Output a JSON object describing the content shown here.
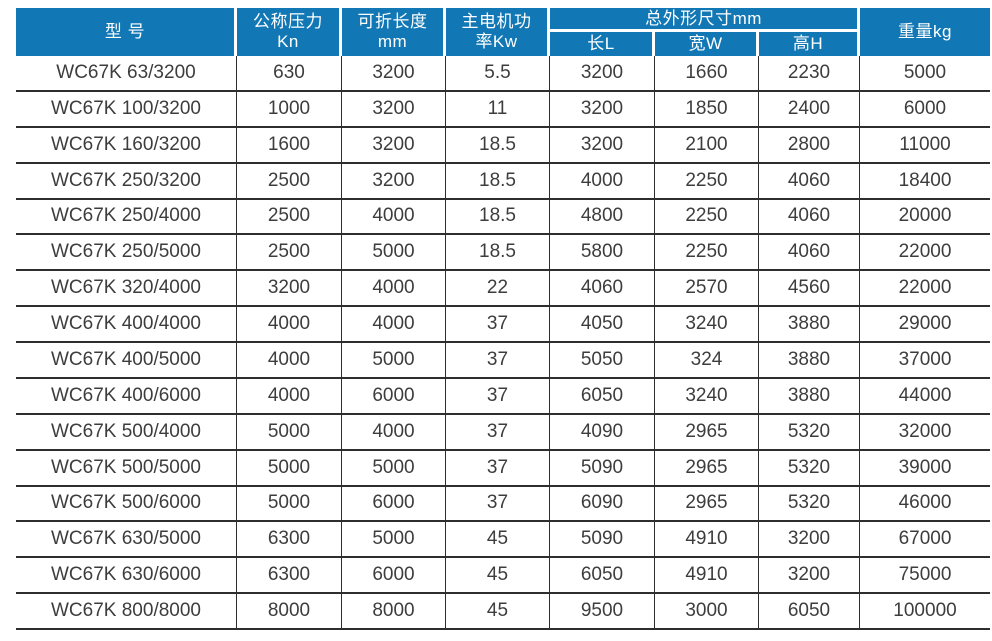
{
  "colors": {
    "header_bg": "#1177b5",
    "header_text": "#ffffff",
    "grid_line": "#2e2e2e",
    "cell_text": "#3d3d3d",
    "page_bg": "#ffffff"
  },
  "table": {
    "headers": {
      "model": "型 号",
      "nominal_pressure": [
        "公称压力",
        "Kn"
      ],
      "fold_length": [
        "可折长度",
        "mm"
      ],
      "motor_power": [
        "主电机功",
        "率Kw"
      ],
      "dims_group": "总外形尺寸mm",
      "dim_l": "长L",
      "dim_w": "宽W",
      "dim_h": "高H",
      "weight": "重量kg"
    },
    "column_keys": [
      "model",
      "nominal_pressure_kn",
      "fold_length_mm",
      "motor_power_kw",
      "length_l",
      "width_w",
      "height_h",
      "weight_kg"
    ],
    "rows": [
      [
        "WC67K 63/3200",
        "630",
        "3200",
        "5.5",
        "3200",
        "1660",
        "2230",
        "5000"
      ],
      [
        "WC67K 100/3200",
        "1000",
        "3200",
        "11",
        "3200",
        "1850",
        "2400",
        "6000"
      ],
      [
        "WC67K 160/3200",
        "1600",
        "3200",
        "18.5",
        "3200",
        "2100",
        "2800",
        "11000"
      ],
      [
        "WC67K 250/3200",
        "2500",
        "3200",
        "18.5",
        "4000",
        "2250",
        "4060",
        "18400"
      ],
      [
        "WC67K 250/4000",
        "2500",
        "4000",
        "18.5",
        "4800",
        "2250",
        "4060",
        "20000"
      ],
      [
        "WC67K 250/5000",
        "2500",
        "5000",
        "18.5",
        "5800",
        "2250",
        "4060",
        "22000"
      ],
      [
        "WC67K 320/4000",
        "3200",
        "4000",
        "22",
        "4060",
        "2570",
        "4560",
        "22000"
      ],
      [
        "WC67K 400/4000",
        "4000",
        "4000",
        "37",
        "4050",
        "3240",
        "3880",
        "29000"
      ],
      [
        "WC67K 400/5000",
        "4000",
        "5000",
        "37",
        "5050",
        "324",
        "3880",
        "37000"
      ],
      [
        "WC67K 400/6000",
        "4000",
        "6000",
        "37",
        "6050",
        "3240",
        "3880",
        "44000"
      ],
      [
        "WC67K 500/4000",
        "5000",
        "4000",
        "37",
        "4090",
        "2965",
        "5320",
        "32000"
      ],
      [
        "WC67K 500/5000",
        "5000",
        "5000",
        "37",
        "5090",
        "2965",
        "5320",
        "39000"
      ],
      [
        "WC67K 500/6000",
        "5000",
        "6000",
        "37",
        "6090",
        "2965",
        "5320",
        "46000"
      ],
      [
        "WC67K 630/5000",
        "6300",
        "5000",
        "45",
        "5090",
        "4910",
        "3200",
        "67000"
      ],
      [
        "WC67K 630/6000",
        "6300",
        "6000",
        "45",
        "6050",
        "4910",
        "3200",
        "75000"
      ],
      [
        "WC67K 800/8000",
        "8000",
        "8000",
        "45",
        "9500",
        "3000",
        "6050",
        "100000"
      ]
    ]
  }
}
